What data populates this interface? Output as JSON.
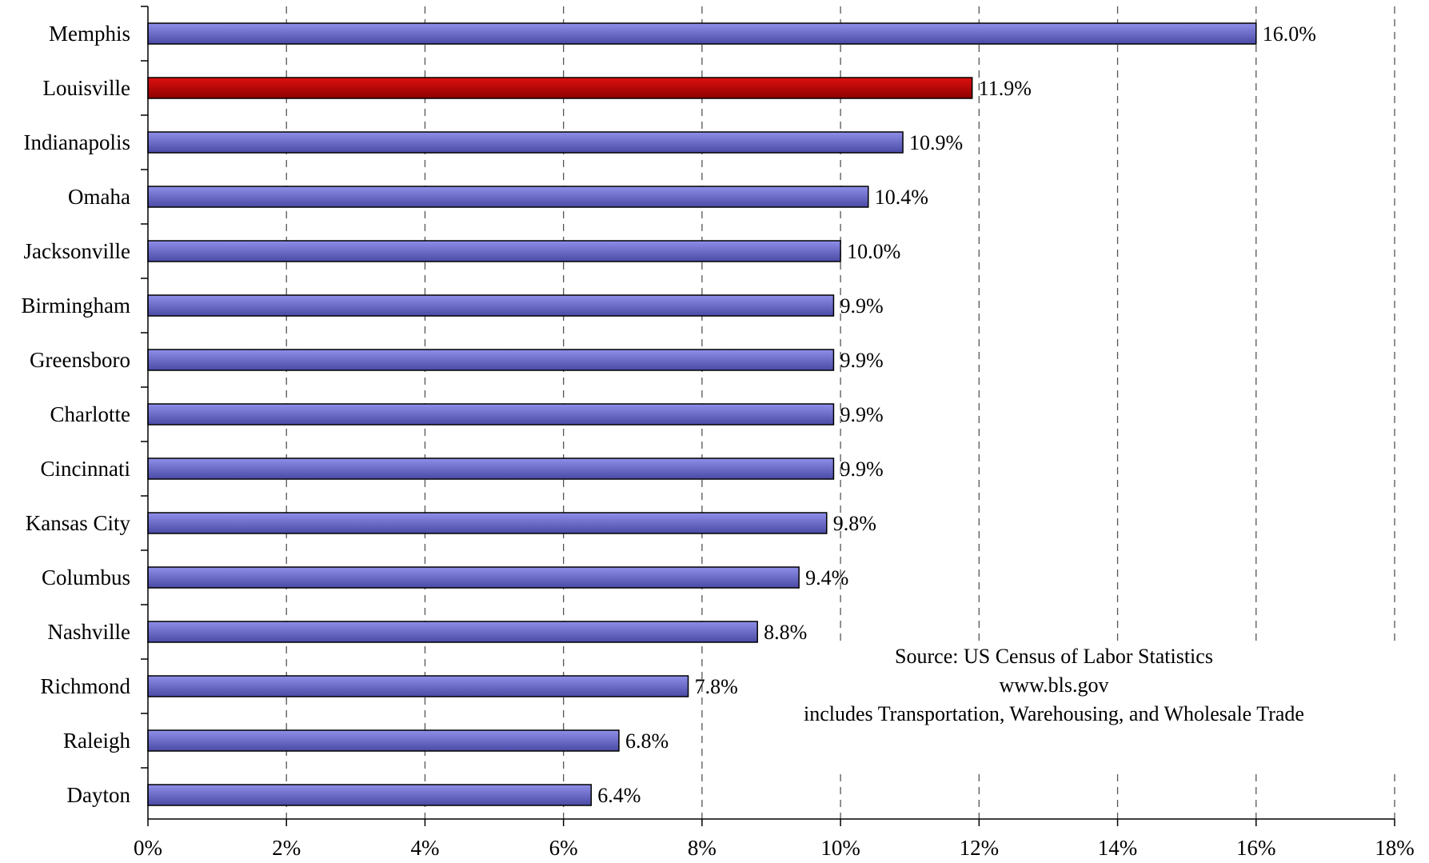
{
  "colors": {
    "bar_default": "#8f8fe9",
    "bar_default_dark": "#4a4aa6",
    "bar_highlight": "#e01010",
    "bar_highlight_dark": "#8c0000",
    "grid": "#555555",
    "text": "#000000"
  },
  "chart_data": {
    "type": "bar",
    "orientation": "horizontal",
    "categories": [
      "Memphis",
      "Louisville",
      "Indianapolis",
      "Omaha",
      "Jacksonville",
      "Birmingham",
      "Greensboro",
      "Charlotte",
      "Cincinnati",
      "Kansas City",
      "Columbus",
      "Nashville",
      "Richmond",
      "Raleigh",
      "Dayton"
    ],
    "values": [
      16.0,
      11.9,
      10.9,
      10.4,
      10.0,
      9.9,
      9.9,
      9.9,
      9.9,
      9.8,
      9.4,
      8.8,
      7.8,
      6.8,
      6.4
    ],
    "value_labels": [
      "16.0%",
      "11.9%",
      "10.9%",
      "10.4%",
      "10.0%",
      "9.9%",
      "9.9%",
      "9.9%",
      "9.9%",
      "9.8%",
      "9.4%",
      "8.8%",
      "7.8%",
      "6.8%",
      "6.4%"
    ],
    "highlight_category": "Louisville",
    "title": "",
    "xlabel": "",
    "ylabel": "",
    "xlim": [
      0,
      18
    ],
    "x_ticks": [
      0,
      2,
      4,
      6,
      8,
      10,
      12,
      14,
      16,
      18
    ],
    "x_tick_labels": [
      "0%",
      "2%",
      "4%",
      "6%",
      "8%",
      "10%",
      "12%",
      "14%",
      "16%",
      "18%"
    ],
    "grid": "vertical-dashed",
    "legend": "none",
    "annotation": {
      "lines": [
        "Source: US Census of Labor Statistics",
        "www.bls.gov",
        "includes Transportation, Warehousing, and Wholesale Trade"
      ],
      "placement": "lower-right"
    }
  }
}
